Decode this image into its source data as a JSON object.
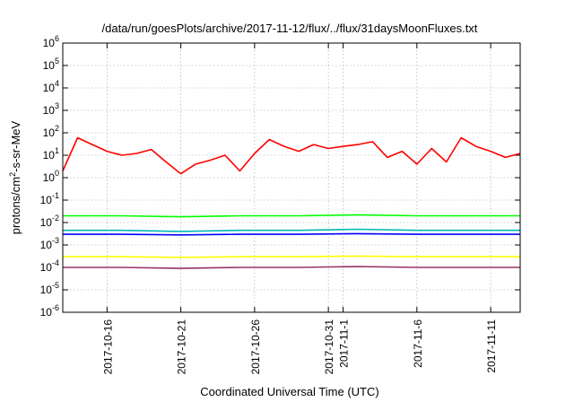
{
  "chart_data": {
    "type": "line",
    "title": "/data/run/goesPlots/archive/2017-11-12/flux/../flux/31daysMoonFluxes.txt",
    "xlabel": "Coordinated Universal Time (UTC)",
    "ylabel": {
      "prefix": "protons/cm",
      "sup": "2",
      "suffix": "-s-sr-MeV"
    },
    "yscale": "log",
    "xlim": [
      "2017-10-13",
      "2017-11-13"
    ],
    "ylim": [
      1e-06,
      1000000.0
    ],
    "y_ticks": [
      {
        "value": 1e-06,
        "base": "10",
        "exp": "-6"
      },
      {
        "value": 1e-05,
        "base": "10",
        "exp": "-5"
      },
      {
        "value": 0.0001,
        "base": "10",
        "exp": "-4"
      },
      {
        "value": 0.001,
        "base": "10",
        "exp": "-3"
      },
      {
        "value": 0.01,
        "base": "10",
        "exp": "-2"
      },
      {
        "value": 0.1,
        "base": "10",
        "exp": "-1"
      },
      {
        "value": 1.0,
        "base": "10",
        "exp": "0"
      },
      {
        "value": 10.0,
        "base": "10",
        "exp": "1"
      },
      {
        "value": 100.0,
        "base": "10",
        "exp": "2"
      },
      {
        "value": 1000.0,
        "base": "10",
        "exp": "3"
      },
      {
        "value": 10000.0,
        "base": "10",
        "exp": "4"
      },
      {
        "value": 100000.0,
        "base": "10",
        "exp": "5"
      },
      {
        "value": 1000000.0,
        "base": "10",
        "exp": "6"
      }
    ],
    "x_ticks": [
      {
        "value": "2017-10-16",
        "label": "2017-10-16"
      },
      {
        "value": "2017-10-21",
        "label": "2017-10-21"
      },
      {
        "value": "2017-10-26",
        "label": "2017-10-26"
      },
      {
        "value": "2017-10-31",
        "label": "2017-10-31"
      },
      {
        "value": "2017-11-01",
        "label": "2017-11-1"
      },
      {
        "value": "2017-11-06",
        "label": "2017-11-6"
      },
      {
        "value": "2017-11-11",
        "label": "2017-11-11"
      }
    ],
    "grid": true,
    "legend": "none",
    "series": [
      {
        "color": "#ff0000",
        "x": [
          "2017-10-13",
          "2017-10-14",
          "2017-10-15",
          "2017-10-16",
          "2017-10-17",
          "2017-10-18",
          "2017-10-19",
          "2017-10-20",
          "2017-10-21",
          "2017-10-22",
          "2017-10-23",
          "2017-10-24",
          "2017-10-25",
          "2017-10-26",
          "2017-10-27",
          "2017-10-28",
          "2017-10-29",
          "2017-10-30",
          "2017-10-31",
          "2017-11-01",
          "2017-11-02",
          "2017-11-03",
          "2017-11-04",
          "2017-11-05",
          "2017-11-06",
          "2017-11-07",
          "2017-11-08",
          "2017-11-09",
          "2017-11-10",
          "2017-11-11",
          "2017-11-12",
          "2017-11-13"
        ],
        "y": [
          2,
          60,
          30,
          15,
          10,
          12,
          18,
          5,
          1.5,
          4,
          6,
          10,
          2,
          12,
          50,
          25,
          15,
          30,
          20,
          25,
          30,
          40,
          8,
          15,
          4,
          20,
          5,
          60,
          25,
          15,
          8,
          12
        ]
      },
      {
        "color": "#00ff00",
        "x": [
          "2017-10-13",
          "2017-10-17",
          "2017-10-21",
          "2017-10-25",
          "2017-10-29",
          "2017-11-02",
          "2017-11-06",
          "2017-11-10",
          "2017-11-13"
        ],
        "y": [
          0.02,
          0.02,
          0.018,
          0.02,
          0.02,
          0.022,
          0.02,
          0.02,
          0.02
        ]
      },
      {
        "color": "#00b8b8",
        "x": [
          "2017-10-13",
          "2017-10-17",
          "2017-10-21",
          "2017-10-25",
          "2017-10-29",
          "2017-11-02",
          "2017-11-06",
          "2017-11-10",
          "2017-11-13"
        ],
        "y": [
          0.0045,
          0.0045,
          0.004,
          0.0045,
          0.0045,
          0.005,
          0.0045,
          0.0045,
          0.0045
        ]
      },
      {
        "color": "#0000ff",
        "x": [
          "2017-10-13",
          "2017-10-17",
          "2017-10-21",
          "2017-10-25",
          "2017-10-29",
          "2017-11-02",
          "2017-11-06",
          "2017-11-10",
          "2017-11-13"
        ],
        "y": [
          0.003,
          0.003,
          0.0028,
          0.003,
          0.003,
          0.0032,
          0.003,
          0.003,
          0.003
        ]
      },
      {
        "color": "#ffff00",
        "x": [
          "2017-10-13",
          "2017-10-17",
          "2017-10-21",
          "2017-10-25",
          "2017-10-29",
          "2017-11-02",
          "2017-11-06",
          "2017-11-10",
          "2017-11-13"
        ],
        "y": [
          0.0003,
          0.0003,
          0.00028,
          0.0003,
          0.0003,
          0.00032,
          0.0003,
          0.0003,
          0.0003
        ]
      },
      {
        "color": "#993366",
        "x": [
          "2017-10-13",
          "2017-10-17",
          "2017-10-21",
          "2017-10-25",
          "2017-10-29",
          "2017-11-02",
          "2017-11-06",
          "2017-11-10",
          "2017-11-13"
        ],
        "y": [
          0.0001,
          0.0001,
          9e-05,
          0.0001,
          0.0001,
          0.00011,
          0.0001,
          0.0001,
          0.0001
        ]
      }
    ]
  }
}
